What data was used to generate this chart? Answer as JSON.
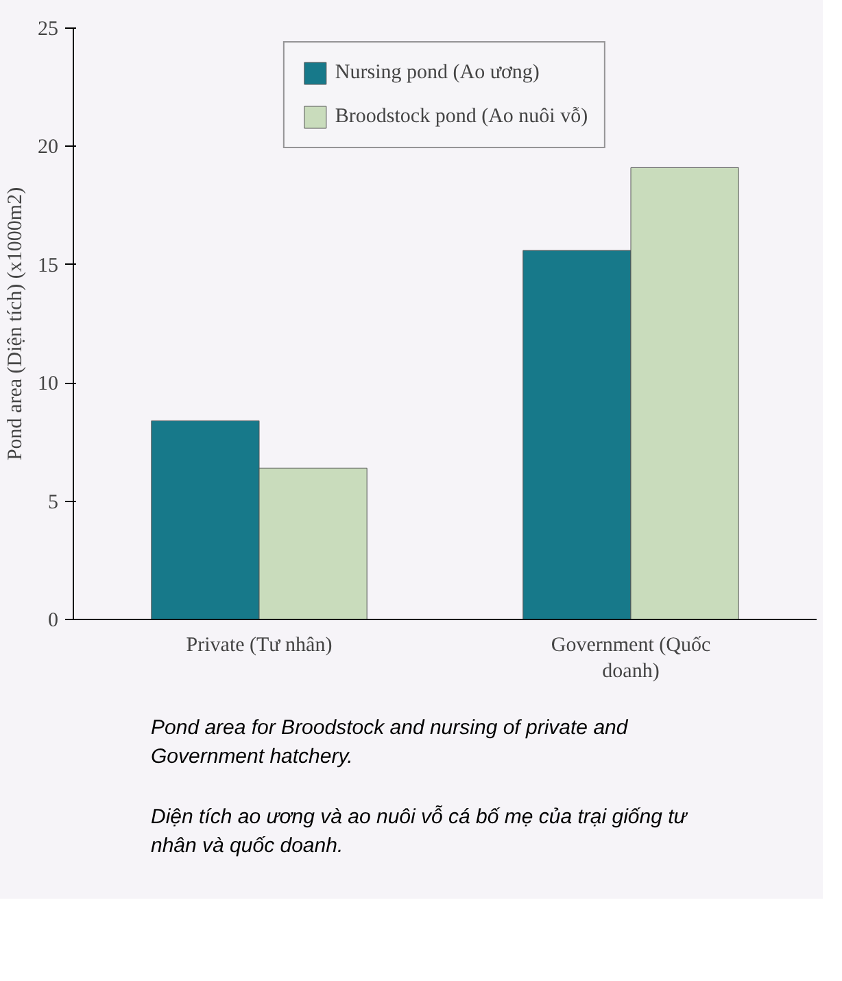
{
  "chart_data": {
    "type": "bar",
    "ylabel": "Pond area (Diện tích) (x1000m2)",
    "categories": [
      "Private (Tư nhân)",
      "Government (Quốc doanh)"
    ],
    "series": [
      {
        "name": "Nursing pond (Ao ương)",
        "color": "#17798a",
        "values": [
          8.4,
          15.6
        ]
      },
      {
        "name": "Broodstock pond (Ao nuôi vỗ)",
        "color": "#c9dcbc",
        "values": [
          6.4,
          19.1
        ]
      }
    ],
    "ylim": [
      0,
      25
    ],
    "yticks": [
      0,
      5,
      10,
      15,
      20,
      25
    ],
    "grid": false,
    "legend": "top",
    "annotations": [
      "Pond area for Broodstock and nursing of private and Government hatchery.",
      "Diện tích ao ương và ao nuôi vỗ cá bố mẹ của trại giống tư nhân và quốc doanh."
    ]
  }
}
